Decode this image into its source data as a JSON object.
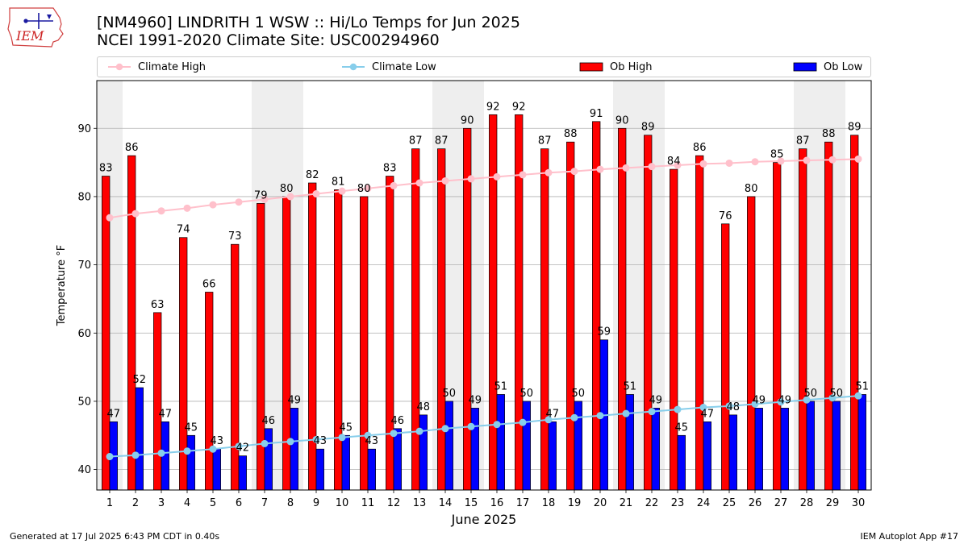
{
  "header": {
    "title_line1": "[NM4960] LINDRITH 1 WSW :: Hi/Lo Temps for Jun 2025",
    "title_line2": "NCEI 1991-2020 Climate Site: USC00294960",
    "logo_text": "IEM"
  },
  "legend": {
    "climate_high": "Climate High",
    "climate_low": "Climate Low",
    "ob_high": "Ob High",
    "ob_low": "Ob Low"
  },
  "footer": {
    "left": "Generated at 17 Jul 2025 6:43 PM CDT in 0.40s",
    "right": "IEM Autoplot App #17"
  },
  "colors": {
    "ob_high": "#ff0000",
    "ob_low": "#0000ff",
    "climate_high": "#ffc0cb",
    "climate_low": "#87ceeb",
    "weekend_shade": "#eeeeee",
    "grid": "#b0b0b0"
  },
  "chart_data": {
    "type": "bar",
    "xlabel": "June 2025",
    "ylabel": "Temperature °F",
    "ylim": [
      37,
      97
    ],
    "yticks": [
      40,
      50,
      60,
      70,
      80,
      90
    ],
    "grid": "horizontal",
    "legend_position": "top",
    "categories": [
      "1",
      "2",
      "3",
      "4",
      "5",
      "6",
      "7",
      "8",
      "9",
      "10",
      "11",
      "12",
      "13",
      "14",
      "15",
      "16",
      "17",
      "18",
      "19",
      "20",
      "21",
      "22",
      "23",
      "24",
      "25",
      "26",
      "27",
      "28",
      "29",
      "30"
    ],
    "shaded_days": [
      1,
      7,
      8,
      14,
      15,
      21,
      22,
      28,
      29
    ],
    "series": [
      {
        "name": "Ob High",
        "kind": "bar",
        "values": [
          83,
          86,
          63,
          74,
          66,
          73,
          79,
          80,
          82,
          81,
          80,
          83,
          87,
          87,
          90,
          92,
          92,
          87,
          88,
          91,
          90,
          89,
          84,
          86,
          76,
          80,
          85,
          87,
          88,
          89
        ]
      },
      {
        "name": "Ob Low",
        "kind": "bar",
        "values": [
          47,
          52,
          47,
          45,
          43,
          42,
          46,
          49,
          43,
          45,
          43,
          46,
          48,
          50,
          49,
          51,
          50,
          47,
          50,
          59,
          51,
          49,
          45,
          47,
          48,
          49,
          49,
          50,
          50,
          51
        ]
      },
      {
        "name": "Climate High",
        "kind": "line",
        "values": [
          76.9,
          77.5,
          77.9,
          78.3,
          78.8,
          79.2,
          79.6,
          80.0,
          80.4,
          80.8,
          81.2,
          81.6,
          82.0,
          82.3,
          82.6,
          82.9,
          83.2,
          83.5,
          83.7,
          84.0,
          84.2,
          84.4,
          84.6,
          84.8,
          84.9,
          85.1,
          85.2,
          85.3,
          85.4,
          85.5
        ]
      },
      {
        "name": "Climate Low",
        "kind": "line",
        "values": [
          41.9,
          42.1,
          42.4,
          42.7,
          43.0,
          43.4,
          43.8,
          44.1,
          44.4,
          44.7,
          45.0,
          45.3,
          45.6,
          46.0,
          46.3,
          46.6,
          46.9,
          47.3,
          47.6,
          47.9,
          48.2,
          48.5,
          48.8,
          49.1,
          49.3,
          49.6,
          49.9,
          50.2,
          50.5,
          50.8
        ]
      }
    ]
  }
}
